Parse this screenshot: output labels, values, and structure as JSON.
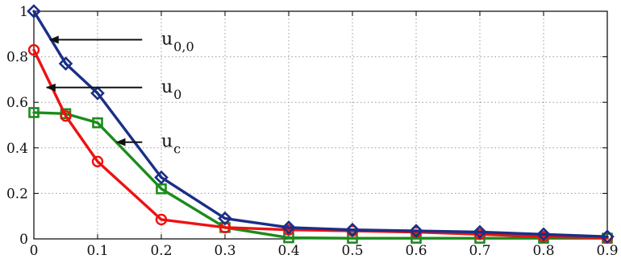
{
  "chart_data": {
    "type": "line",
    "xlim": [
      0,
      0.9
    ],
    "ylim": [
      0,
      1
    ],
    "x_ticks": [
      "0",
      "0.1",
      "0.2",
      "0.3",
      "0.4",
      "0.5",
      "0.6",
      "0.7",
      "0.8",
      "0.9"
    ],
    "y_ticks": [
      "0",
      "0.2",
      "0.4",
      "0.6",
      "0.8",
      "1"
    ],
    "grid": true,
    "series": [
      {
        "name": "u0,0",
        "color": "#1a2f86",
        "marker": "diamond",
        "x": [
          0,
          0.05,
          0.1,
          0.2,
          0.3,
          0.4,
          0.5,
          0.6,
          0.7,
          0.8,
          0.9
        ],
        "y": [
          1.0,
          0.77,
          0.64,
          0.27,
          0.09,
          0.05,
          0.04,
          0.035,
          0.03,
          0.02,
          0.01
        ]
      },
      {
        "name": "u0",
        "color": "#ee1111",
        "marker": "circle",
        "x": [
          0,
          0.05,
          0.1,
          0.2,
          0.3,
          0.4,
          0.5,
          0.6,
          0.7,
          0.8,
          0.9
        ],
        "y": [
          0.83,
          0.54,
          0.34,
          0.085,
          0.05,
          0.04,
          0.035,
          0.03,
          0.02,
          0.01,
          0.005
        ]
      },
      {
        "name": "uc",
        "color": "#1b8c1b",
        "marker": "square",
        "x": [
          0,
          0.05,
          0.1,
          0.2,
          0.3,
          0.4,
          0.5,
          0.6,
          0.7,
          0.8,
          0.9
        ],
        "y": [
          0.555,
          0.55,
          0.51,
          0.22,
          0.05,
          0.005,
          0.003,
          0.003,
          0.003,
          0.003,
          0.003
        ]
      }
    ],
    "annotations": [
      {
        "series": "u0,0",
        "main": "u",
        "sub": "0,0",
        "text_x": 0.2,
        "text_y": 0.875,
        "arrow_from_x": 0.17,
        "arrow_from_y": 0.875,
        "arrow_to_x": 0.025,
        "arrow_to_y": 0.875
      },
      {
        "series": "u0",
        "main": "u",
        "sub": "0",
        "text_x": 0.2,
        "text_y": 0.665,
        "arrow_from_x": 0.17,
        "arrow_from_y": 0.665,
        "arrow_to_x": 0.02,
        "arrow_to_y": 0.665
      },
      {
        "series": "uc",
        "main": "u",
        "sub": "c",
        "text_x": 0.2,
        "text_y": 0.425,
        "arrow_from_x": 0.17,
        "arrow_from_y": 0.425,
        "arrow_to_x": 0.13,
        "arrow_to_y": 0.425
      }
    ]
  }
}
